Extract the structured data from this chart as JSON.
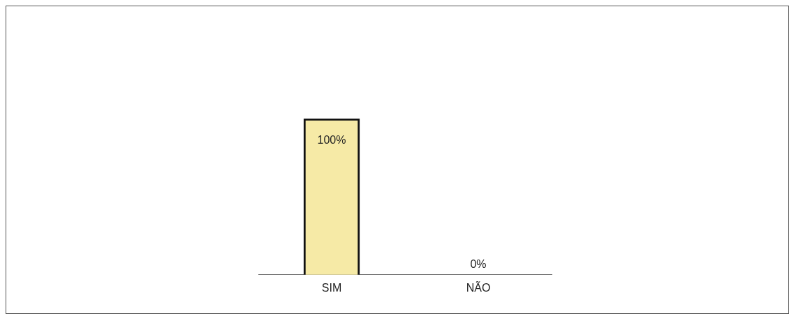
{
  "chart_data": {
    "type": "bar",
    "categories": [
      "SIM",
      "NÃO"
    ],
    "values": [
      100,
      0
    ],
    "colors": [
      "#f6eaa6",
      "#8fbf6a"
    ],
    "value_labels": [
      "100%",
      "0%"
    ],
    "grid": false,
    "legend": false
  }
}
